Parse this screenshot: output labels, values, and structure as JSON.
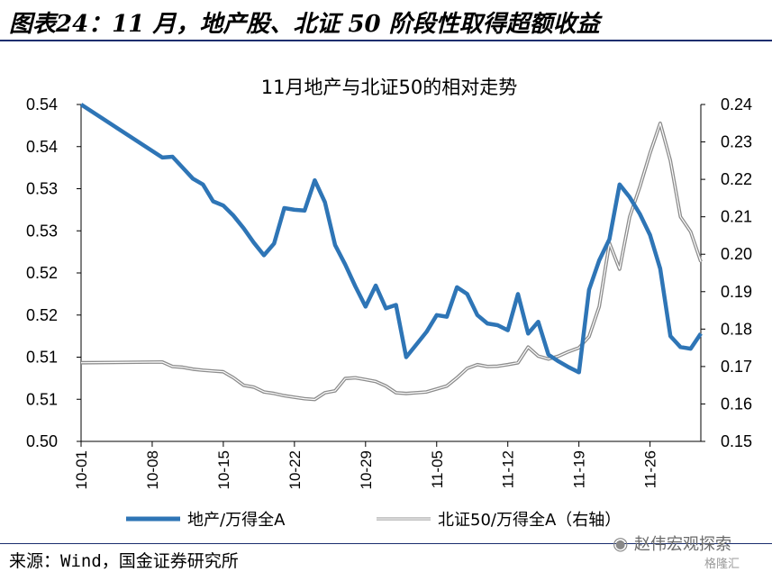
{
  "header": {
    "title": "图表24：11 月，地产股、北证 50 阶段性取得超额收益"
  },
  "footer": {
    "source": "来源：Wind，国金证券研究所"
  },
  "watermark": {
    "text": "赵伟宏观探索",
    "logo": "格隆汇"
  },
  "chart_data": {
    "type": "line",
    "title": "11月地产与北证50的相对走势",
    "colors": {
      "left_series": "#2e75b6",
      "right_series": "#b4b4b4"
    },
    "x_tick_labels": [
      "10-01",
      "10-08",
      "10-15",
      "10-22",
      "10-29",
      "11-05",
      "11-12",
      "11-19",
      "11-26"
    ],
    "y_left": {
      "ylim": [
        0.5,
        0.54
      ],
      "tick_values": [
        0.5,
        0.505,
        0.51,
        0.515,
        0.52,
        0.525,
        0.53,
        0.535,
        0.54
      ],
      "tick_labels": [
        "0.50",
        "0.51",
        "0.51",
        "0.52",
        "0.52",
        "0.53",
        "0.53",
        "0.54",
        "0.54"
      ]
    },
    "y_right": {
      "ylim": [
        0.15,
        0.24
      ],
      "tick_values": [
        0.15,
        0.16,
        0.17,
        0.18,
        0.19,
        0.2,
        0.21,
        0.22,
        0.23,
        0.24
      ],
      "tick_labels": [
        "0.15",
        "0.16",
        "0.17",
        "0.18",
        "0.19",
        "0.20",
        "0.21",
        "0.22",
        "0.23",
        "0.24"
      ]
    },
    "legend_position": "bottom",
    "series": [
      {
        "name": "地产/万得全A",
        "axis": "left",
        "x": [
          "10-01",
          "10-09",
          "10-10",
          "10-11",
          "10-12",
          "10-13",
          "10-14",
          "10-15",
          "10-16",
          "10-17",
          "10-18",
          "10-19",
          "10-20",
          "10-21",
          "10-22",
          "10-23",
          "10-24",
          "10-25",
          "10-26",
          "10-27",
          "10-28",
          "10-29",
          "10-30",
          "10-31",
          "11-01",
          "11-02",
          "11-03",
          "11-04",
          "11-05",
          "11-06",
          "11-07",
          "11-08",
          "11-09",
          "11-10",
          "11-11",
          "11-12",
          "11-13",
          "11-14",
          "11-15",
          "11-16",
          "11-17",
          "11-18",
          "11-19",
          "11-20",
          "11-21",
          "11-22",
          "11-23",
          "11-24",
          "11-25",
          "11-26",
          "11-27",
          "11-28",
          "11-29",
          "11-30",
          "12-01"
        ],
        "values": [
          0.54,
          0.5337,
          0.5338,
          0.5325,
          0.5312,
          0.5305,
          0.5285,
          0.528,
          0.5268,
          0.5253,
          0.5236,
          0.5221,
          0.5235,
          0.5277,
          0.5275,
          0.5274,
          0.531,
          0.5284,
          0.5233,
          0.521,
          0.5184,
          0.516,
          0.5185,
          0.5158,
          0.5162,
          0.51,
          0.5115,
          0.513,
          0.515,
          0.5148,
          0.5183,
          0.5175,
          0.515,
          0.514,
          0.5138,
          0.5132,
          0.5175,
          0.5128,
          0.5142,
          0.5103,
          0.5095,
          0.5088,
          0.5082,
          0.518,
          0.5215,
          0.524,
          0.5305,
          0.529,
          0.527,
          0.5245,
          0.5205,
          0.5125,
          0.5112,
          0.511,
          0.5128
        ]
      },
      {
        "name": "北证50/万得全A（右轴）",
        "axis": "right",
        "x": [
          "10-01",
          "10-09",
          "10-10",
          "10-11",
          "10-12",
          "10-13",
          "10-14",
          "10-15",
          "10-16",
          "10-17",
          "10-18",
          "10-19",
          "10-20",
          "10-21",
          "10-22",
          "10-23",
          "10-24",
          "10-25",
          "10-26",
          "10-27",
          "10-28",
          "10-29",
          "10-30",
          "10-31",
          "11-01",
          "11-02",
          "11-03",
          "11-04",
          "11-05",
          "11-06",
          "11-07",
          "11-08",
          "11-09",
          "11-10",
          "11-11",
          "11-12",
          "11-13",
          "11-14",
          "11-15",
          "11-16",
          "11-17",
          "11-18",
          "11-19",
          "11-20",
          "11-21",
          "11-22",
          "11-23",
          "11-24",
          "11-25",
          "11-26",
          "11-27",
          "11-28",
          "11-29",
          "11-30",
          "12-01"
        ],
        "values": [
          0.171,
          0.1712,
          0.17,
          0.1698,
          0.1693,
          0.169,
          0.1688,
          0.1686,
          0.167,
          0.165,
          0.1645,
          0.1632,
          0.1628,
          0.1622,
          0.1618,
          0.1614,
          0.1612,
          0.163,
          0.1635,
          0.1668,
          0.167,
          0.1665,
          0.166,
          0.1648,
          0.163,
          0.1628,
          0.163,
          0.1632,
          0.164,
          0.1648,
          0.167,
          0.1695,
          0.1705,
          0.17,
          0.1701,
          0.1705,
          0.171,
          0.1752,
          0.1728,
          0.172,
          0.1728,
          0.174,
          0.175,
          0.178,
          0.186,
          0.203,
          0.196,
          0.21,
          0.218,
          0.227,
          0.235,
          0.225,
          0.21,
          0.206,
          0.198
        ]
      }
    ]
  }
}
